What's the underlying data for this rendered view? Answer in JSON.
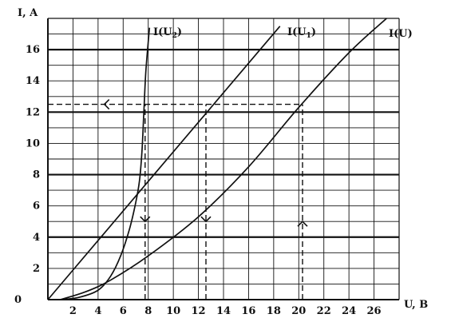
{
  "chart_data": {
    "type": "line",
    "x_axis": {
      "label": "U, B",
      "lim": [
        0,
        28
      ],
      "ticks": [
        2,
        4,
        6,
        8,
        10,
        12,
        14,
        16,
        18,
        20,
        22,
        24,
        26
      ],
      "minor_step": 2
    },
    "y_axis": {
      "label": "I, A",
      "lim": [
        0,
        18
      ],
      "ticks": [
        2,
        4,
        6,
        8,
        10,
        12,
        14,
        16
      ],
      "minor_step": 1,
      "heavy_lines": [
        4,
        8,
        12,
        16
      ]
    },
    "origin_label": "0",
    "grid": true,
    "series": [
      {
        "name": "I(U₂)",
        "label_main": "I(U",
        "label_sub": "2",
        "label_close": ")",
        "points": [
          [
            1.0,
            0.0
          ],
          [
            2.5,
            0.15
          ],
          [
            4.0,
            0.6
          ],
          [
            5.0,
            1.5
          ],
          [
            5.8,
            2.8
          ],
          [
            6.5,
            4.5
          ],
          [
            7.0,
            6.2
          ],
          [
            7.3,
            7.6
          ],
          [
            7.5,
            9.5
          ],
          [
            7.65,
            12.0
          ],
          [
            7.8,
            14.5
          ],
          [
            8.0,
            16.5
          ],
          [
            8.1,
            17.4
          ]
        ]
      },
      {
        "name": "I(U₁)",
        "label_main": "I(U",
        "label_sub": "1",
        "label_close": ")",
        "points": [
          [
            0,
            0
          ],
          [
            18.5,
            17.5
          ]
        ]
      },
      {
        "name": "I(U)",
        "label_main": "I(U)",
        "label_sub": "",
        "label_close": "",
        "points": [
          [
            1.0,
            0.0
          ],
          [
            3.0,
            0.5
          ],
          [
            5.0,
            1.25
          ],
          [
            8.0,
            2.8
          ],
          [
            12.0,
            5.3
          ],
          [
            16.0,
            8.5
          ],
          [
            20.0,
            12.3
          ],
          [
            24.0,
            15.8
          ],
          [
            27.0,
            18.0
          ]
        ]
      }
    ],
    "construction": {
      "horizontal_dashed_y": 12.5,
      "horizontal_dashed_x": [
        0,
        20.3
      ],
      "vertical_dashed": [
        {
          "x": 7.75,
          "y": [
            0,
            12.5
          ]
        },
        {
          "x": 12.6,
          "y": [
            0,
            12.5
          ]
        },
        {
          "x": 20.3,
          "y": [
            0,
            12.5
          ]
        }
      ],
      "arrows": [
        {
          "x": 4.5,
          "y": 12.5,
          "dir": "left"
        },
        {
          "x": 7.75,
          "y": 5.0,
          "dir": "down"
        },
        {
          "x": 12.6,
          "y": 5.0,
          "dir": "down"
        },
        {
          "x": 20.3,
          "y": 5.0,
          "dir": "up"
        }
      ]
    }
  }
}
